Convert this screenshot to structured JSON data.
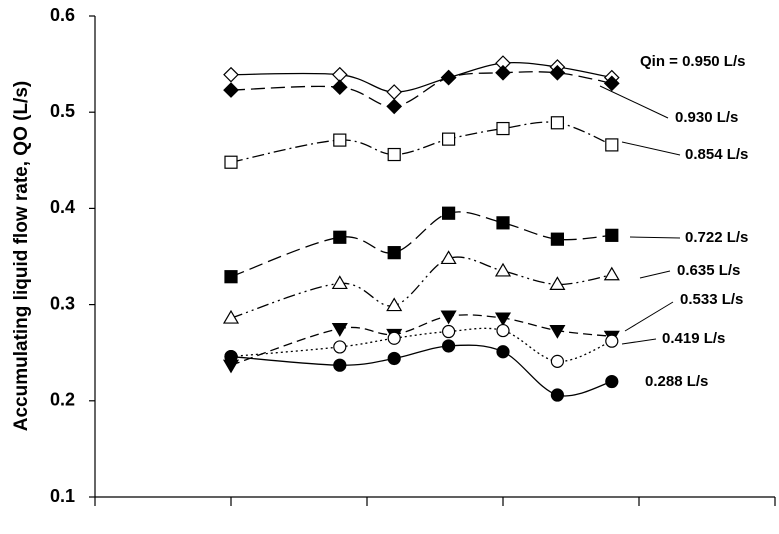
{
  "chart_data": {
    "type": "line",
    "y_label": "Accumulating liquid flow rate, QO (L/s)",
    "x": [
      5,
      9,
      11,
      13,
      15,
      17,
      19
    ],
    "xlim": [
      0,
      25
    ],
    "xticks": [
      0,
      5,
      10,
      15,
      20,
      25
    ],
    "ylim": [
      0.1,
      0.6
    ],
    "yticks": [
      0.1,
      0.2,
      0.3,
      0.4,
      0.5,
      0.6
    ],
    "series": [
      {
        "name": "Qin = 0.950 L/s",
        "color": "#000000",
        "marker": "diamond",
        "filled": false,
        "dash": "solid",
        "values": [
          0.539,
          0.539,
          0.521,
          0.536,
          0.551,
          0.547,
          0.536
        ]
      },
      {
        "name": "0.930 L/s",
        "color": "#000000",
        "marker": "diamond",
        "filled": true,
        "dash": "longdash",
        "values": [
          0.523,
          0.526,
          0.506,
          0.536,
          0.541,
          0.541,
          0.53
        ]
      },
      {
        "name": "0.854 L/s",
        "color": "#000000",
        "marker": "square",
        "filled": false,
        "dash": "dashdot",
        "values": [
          0.448,
          0.471,
          0.456,
          0.472,
          0.483,
          0.489,
          0.466
        ]
      },
      {
        "name": "0.722 L/s",
        "color": "#000000",
        "marker": "square",
        "filled": true,
        "dash": "longdash",
        "values": [
          0.329,
          0.37,
          0.354,
          0.395,
          0.385,
          0.368,
          0.372
        ]
      },
      {
        "name": "0.635 L/s",
        "color": "#000000",
        "marker": "triangle-up",
        "filled": false,
        "dash": "dashdotdot",
        "values": [
          0.286,
          0.322,
          0.299,
          0.348,
          0.335,
          0.321,
          0.331
        ]
      },
      {
        "name": "0.533 L/s",
        "color": "#000000",
        "marker": "triangle-down",
        "filled": true,
        "dash": "dash",
        "values": [
          0.237,
          0.275,
          0.269,
          0.288,
          0.286,
          0.273,
          0.267
        ]
      },
      {
        "name": "0.419 L/s",
        "color": "#000000",
        "marker": "circle",
        "filled": false,
        "dash": "dotted",
        "values": [
          0.246,
          0.256,
          0.265,
          0.272,
          0.273,
          0.241,
          0.262
        ]
      },
      {
        "name": "0.288 L/s",
        "color": "#000000",
        "marker": "circle",
        "filled": true,
        "dash": "solid",
        "values": [
          0.246,
          0.237,
          0.244,
          0.257,
          0.251,
          0.206,
          0.22
        ]
      }
    ]
  }
}
